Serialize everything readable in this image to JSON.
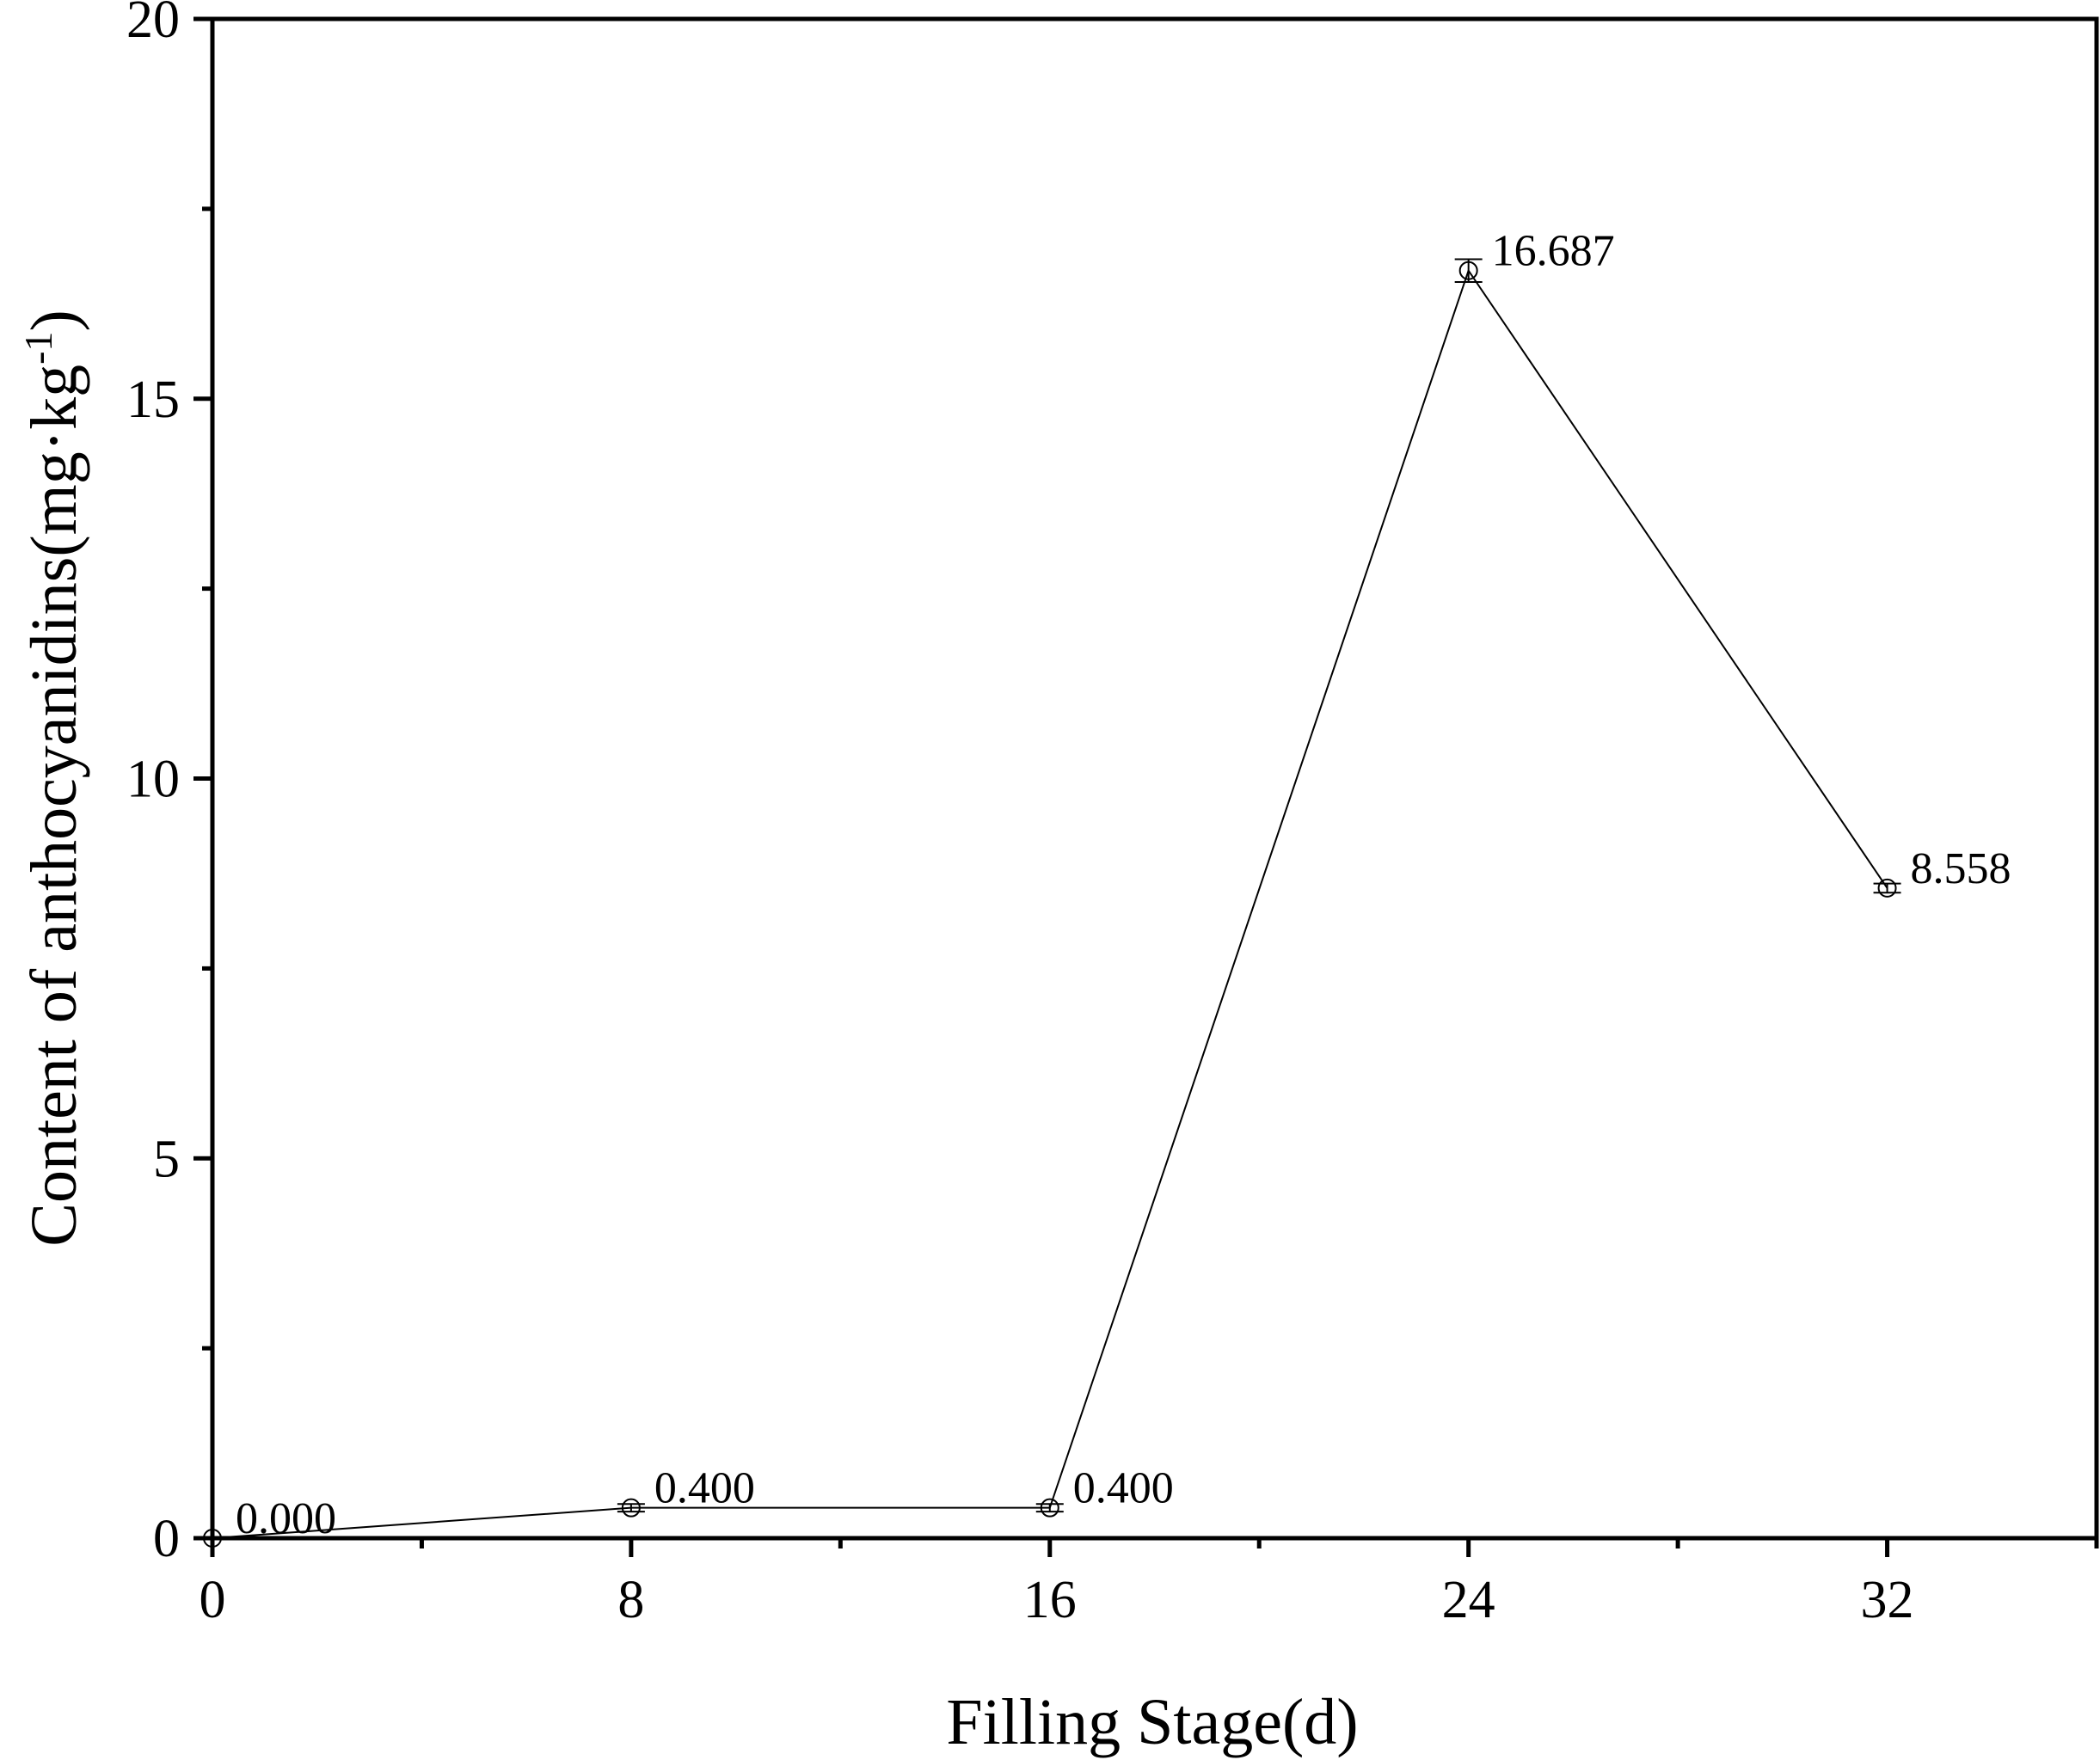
{
  "chart_data": {
    "type": "line",
    "title": "",
    "xlabel": "Filling Stage(d)",
    "ylabel": "Content of anthocyanidins(mg·kg-1)",
    "ylabel_parts": {
      "main": "Content of anthocyanidins(mg·kg",
      "sup": "-1",
      "close": ")"
    },
    "xlim": [
      0,
      36
    ],
    "ylim": [
      0,
      20
    ],
    "x_ticks": [
      0,
      8,
      16,
      24,
      32
    ],
    "x_tick_labels": [
      "0",
      "8",
      "16",
      "24",
      "32"
    ],
    "x_minor_ticks": [
      4,
      12,
      20,
      28,
      36
    ],
    "y_ticks": [
      0,
      5,
      10,
      15,
      20
    ],
    "y_tick_labels": [
      "0",
      "5",
      "10",
      "15",
      "20"
    ],
    "y_minor_ticks": [
      2.5,
      7.5,
      12.5,
      17.5
    ],
    "grid": false,
    "series": [
      {
        "x": [
          0,
          8,
          16,
          24,
          32
        ],
        "values": [
          0.0,
          0.4,
          0.4,
          16.687,
          8.558
        ],
        "errors": [
          0.0,
          0.05,
          0.05,
          0.15,
          0.06
        ],
        "labels": [
          "0.000",
          "0.400",
          "0.400",
          "16.687",
          "8.558"
        ],
        "marker": "open-circle",
        "color": "#000000"
      }
    ]
  }
}
